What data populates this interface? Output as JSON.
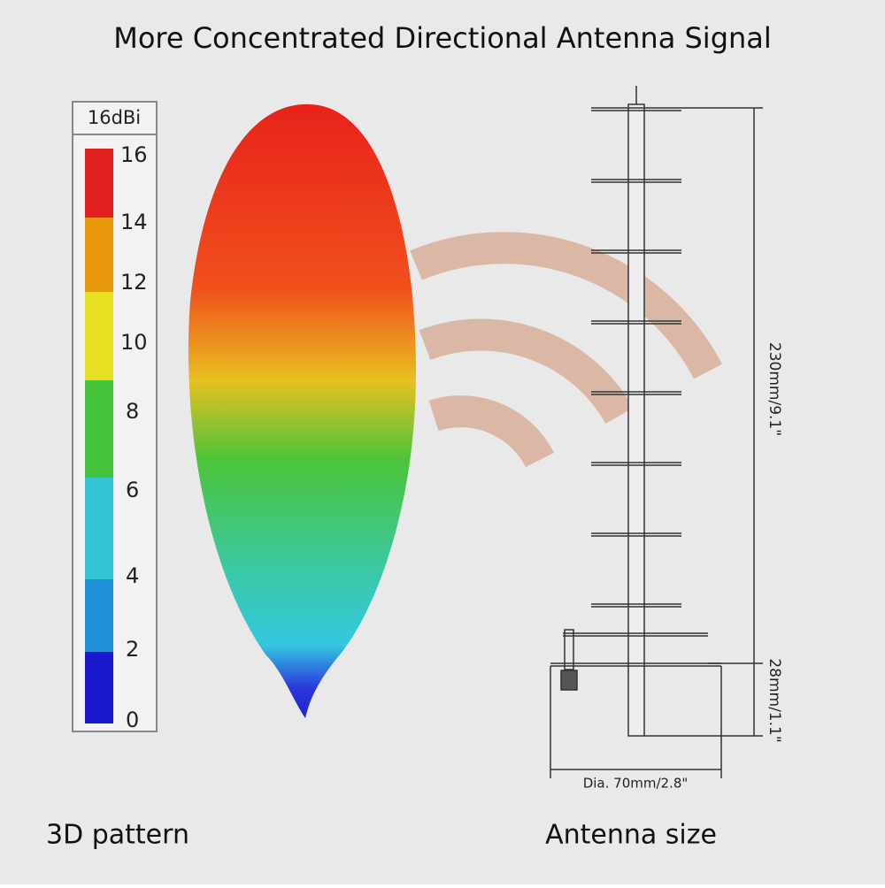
{
  "header": {
    "title": "More Concentrated Directional Antenna Signal"
  },
  "colorbar": {
    "label": "16dBi",
    "ticks": [
      16,
      14,
      12,
      10,
      8,
      6,
      4,
      2,
      0
    ]
  },
  "pattern": {
    "caption": "3D pattern"
  },
  "antenna": {
    "caption": "Antenna size",
    "length": "230mm/9.1\"",
    "base_height": "28mm/1.1\"",
    "diameter": "Dia. 70mm/2.8\""
  }
}
